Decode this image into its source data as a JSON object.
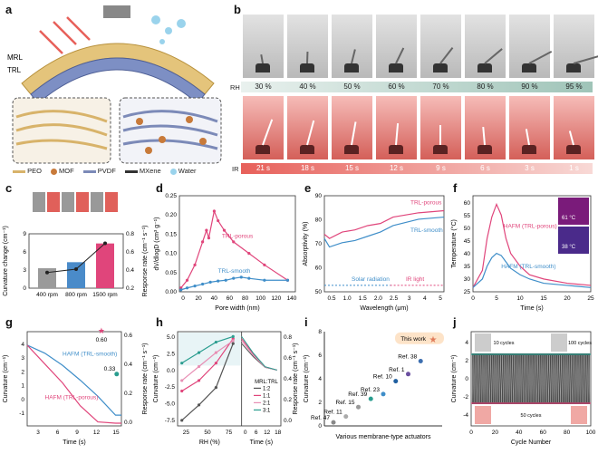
{
  "panels": {
    "a": "a",
    "b": "b",
    "c": "c",
    "d": "d",
    "e": "e",
    "f": "f",
    "g": "g",
    "h": "h",
    "i": "i",
    "j": "j"
  },
  "panel_a": {
    "layer_top": "MRL",
    "layer_bottom": "TRL",
    "legend": [
      "PEO",
      "MOF",
      "PVDF",
      "MXene",
      "Water"
    ]
  },
  "panel_b": {
    "rh_label": "RH",
    "rh_values": [
      "30 %",
      "40 %",
      "50 %",
      "60 %",
      "70 %",
      "80 %",
      "90 %",
      "95 %"
    ],
    "ir_label": "IR",
    "ir_values": [
      "21 s",
      "18 s",
      "15 s",
      "12 s",
      "9 s",
      "6 s",
      "3 s",
      "1 s"
    ]
  },
  "colors": {
    "pink": "#e0457b",
    "blue": "#3f8ec9",
    "gray": "#777777",
    "dark": "#333333"
  },
  "chart_data": [
    {
      "id": "c",
      "type": "bar",
      "categories": [
        "400 rpm",
        "800 rpm",
        "1500 rpm"
      ],
      "series": [
        {
          "name": "Curvature change",
          "values": [
            3.3,
            4.3,
            7.4
          ]
        },
        {
          "name": "Response rate",
          "values": [
            0.23,
            0.28,
            0.66
          ]
        }
      ],
      "ylabel": "Curvature change (cm⁻¹)",
      "ylabel2": "Response rate (cm⁻¹ s⁻¹)",
      "ylim": [
        0,
        9
      ],
      "ylim2": [
        0,
        0.8
      ],
      "yticks": [
        "0",
        "3",
        "6",
        "9"
      ],
      "yticks2": [
        "0.2",
        "0.4",
        "0.6",
        "0.8"
      ]
    },
    {
      "id": "d",
      "type": "line",
      "xlabel": "Pore width (nm)",
      "ylabel": "dV/dlogD (cm³ g⁻¹)",
      "xlim": [
        0,
        150
      ],
      "ylim": [
        0,
        0.25
      ],
      "xticks": [
        "0",
        "20",
        "40",
        "60",
        "80",
        "100",
        "120",
        "140"
      ],
      "yticks": [
        "0.00",
        "0.05",
        "0.10",
        "0.15",
        "0.20",
        "0.25"
      ],
      "series": [
        {
          "name": "TRL-porous",
          "x": [
            2,
            10,
            20,
            30,
            35,
            38,
            45,
            50,
            58,
            70,
            90,
            110,
            140
          ],
          "y": [
            0.01,
            0.03,
            0.07,
            0.13,
            0.16,
            0.14,
            0.21,
            0.185,
            0.16,
            0.13,
            0.1,
            0.07,
            0.03
          ]
        },
        {
          "name": "TRL-smooth",
          "x": [
            2,
            10,
            20,
            30,
            40,
            50,
            60,
            70,
            80,
            90,
            110,
            140
          ],
          "y": [
            0.005,
            0.01,
            0.015,
            0.02,
            0.025,
            0.028,
            0.03,
            0.035,
            0.038,
            0.035,
            0.03,
            0.03
          ]
        }
      ]
    },
    {
      "id": "e",
      "type": "line",
      "xlabel": "Wavelength (μm)",
      "ylabel": "Absorptivity (%)",
      "xlim": [
        0.3,
        5
      ],
      "ylim": [
        45,
        90
      ],
      "xticks": [
        "0.5",
        "1.0",
        "1.5",
        "2.0",
        "2.5",
        "3",
        "4",
        "5"
      ],
      "yticks": [
        "50",
        "60",
        "70",
        "80",
        "90"
      ],
      "annotations": [
        "Solar radiation",
        "IR light"
      ],
      "series": [
        {
          "name": "TRL-porous",
          "x": [
            0.3,
            0.5,
            1,
            1.5,
            2,
            2.5,
            3,
            4,
            5
          ],
          "y": [
            72,
            70,
            73,
            74,
            76,
            77,
            80,
            82,
            83
          ]
        },
        {
          "name": "TRL-smooth",
          "x": [
            0.3,
            0.5,
            1,
            1.5,
            2,
            2.5,
            3,
            4,
            5
          ],
          "y": [
            70,
            66,
            68,
            69,
            71,
            73,
            76,
            79,
            80
          ]
        }
      ]
    },
    {
      "id": "f",
      "type": "line",
      "xlabel": "Time (s)",
      "ylabel": "Temperature (°C)",
      "xlim": [
        0,
        25
      ],
      "ylim": [
        20,
        65
      ],
      "xticks": [
        "0",
        "5",
        "10",
        "15",
        "20",
        "25"
      ],
      "yticks": [
        "25",
        "30",
        "35",
        "40",
        "45",
        "50",
        "55",
        "60"
      ],
      "inset_labels": [
        "61 °C",
        "38 °C"
      ],
      "series": [
        {
          "name": "HAFM (TRL-porous)",
          "x": [
            0,
            2,
            3,
            4,
            5,
            6,
            7,
            8,
            10,
            12,
            15,
            20,
            25
          ],
          "y": [
            22,
            30,
            45,
            55,
            61,
            56,
            45,
            38,
            32,
            28,
            26,
            24,
            23
          ]
        },
        {
          "name": "HAFM (TRL-smooth)",
          "x": [
            0,
            2,
            3,
            4,
            5,
            6,
            7,
            8,
            10,
            12,
            15,
            20,
            25
          ],
          "y": [
            22,
            26,
            32,
            36,
            38,
            37,
            34,
            31,
            28,
            26,
            24,
            23,
            22
          ]
        }
      ]
    },
    {
      "id": "g",
      "type": "line",
      "xlabel": "Time (s)",
      "ylabel": "Curvature (cm⁻¹)",
      "ylabel2": "Response rate (cm⁻¹ s⁻¹)",
      "xlim": [
        0,
        16
      ],
      "ylim": [
        -2,
        5
      ],
      "xticks": [
        "3",
        "6",
        "9",
        "12",
        "15"
      ],
      "yticks": [
        "-1",
        "0",
        "1",
        "2",
        "3",
        "4"
      ],
      "ylim2": [
        0,
        0.6
      ],
      "yticks2": [
        "0.0",
        "0.2",
        "0.4",
        "0.6"
      ],
      "points": [
        {
          "label": "0.60",
          "value": 0.6
        },
        {
          "label": "0.33",
          "value": 0.33
        }
      ],
      "series": [
        {
          "name": "HAFM (TRL-smooth)",
          "x": [
            0,
            3,
            6,
            9,
            12,
            15,
            16
          ],
          "y": [
            4,
            3.4,
            2.5,
            1.4,
            0.2,
            -1.2,
            -1.2
          ]
        },
        {
          "name": "HAFM (TRL-porous)",
          "x": [
            0,
            3,
            6,
            9,
            12,
            15,
            16
          ],
          "y": [
            4,
            2.6,
            1.2,
            -0.5,
            -1.7,
            -1.8,
            -1.8
          ]
        }
      ]
    },
    {
      "id": "h",
      "type": "line",
      "xlabel": "RH (%)",
      "xlabel2": "Time (s)",
      "ylabel": "Curvature (cm⁻¹)",
      "ylabel2": "Response rate (cm⁻¹ s⁻¹)",
      "xticks": [
        "25",
        "50",
        "75"
      ],
      "xticks2": [
        "0",
        "6",
        "12",
        "18"
      ],
      "yticks": [
        "-7.5",
        "-5.0",
        "-2.5",
        "0.0",
        "2.5",
        "5.0"
      ],
      "yticks2": [
        "0.0",
        "0.2",
        "0.4",
        "0.6",
        "0.8"
      ],
      "legend_title": "MRL:TRL",
      "legend": [
        "1:2",
        "1:1",
        "2:1",
        "3:1"
      ],
      "series": [
        {
          "name": "1:2",
          "x": [
            20,
            40,
            60,
            80
          ],
          "y": [
            -7.2,
            -5,
            -2.5,
            3.8
          ]
        },
        {
          "name": "1:1",
          "x": [
            20,
            40,
            60,
            80
          ],
          "y": [
            -3,
            -1.5,
            1,
            4.5
          ]
        },
        {
          "name": "2:1",
          "x": [
            20,
            40,
            60,
            80
          ],
          "y": [
            -1.5,
            0.5,
            2.5,
            4.2
          ]
        },
        {
          "name": "3:1",
          "x": [
            20,
            40,
            60,
            80
          ],
          "y": [
            1,
            2.5,
            4,
            4.8
          ]
        }
      ]
    },
    {
      "id": "i",
      "type": "scatter",
      "xlabel": "Various membrane-type actuators",
      "ylabel": "Curvature (cm⁻¹)",
      "ylim": [
        0,
        8
      ],
      "yticks": [
        "0",
        "2",
        "4",
        "6",
        "8"
      ],
      "points": [
        {
          "label": "Ref. 47",
          "y": 0.3
        },
        {
          "label": "Ref. 11",
          "y": 0.8
        },
        {
          "label": "Ref. 15",
          "y": 1.6
        },
        {
          "label": "Ref. 39",
          "y": 2.3
        },
        {
          "label": "Ref. 23",
          "y": 2.7
        },
        {
          "label": "Ref. 10",
          "y": 3.8
        },
        {
          "label": "Ref. 1",
          "y": 4.4
        },
        {
          "label": "Ref. 38",
          "y": 5.5
        },
        {
          "label": "This work",
          "y": 7.4
        }
      ]
    },
    {
      "id": "j",
      "type": "line",
      "xlabel": "Cycle Number",
      "ylabel": "Curvature (cm⁻¹)",
      "xlim": [
        0,
        100
      ],
      "ylim": [
        -4,
        4
      ],
      "xticks": [
        "0",
        "20",
        "40",
        "60",
        "80",
        "100"
      ],
      "yticks": [
        "-4",
        "-2",
        "0",
        "2",
        "4"
      ],
      "inset_labels": [
        "10 cycles",
        "100 cycles",
        "50 cycles"
      ],
      "series": [
        {
          "name": "cycling",
          "x": [
            0,
            100
          ],
          "y": [
            -3,
            3
          ]
        }
      ]
    }
  ]
}
